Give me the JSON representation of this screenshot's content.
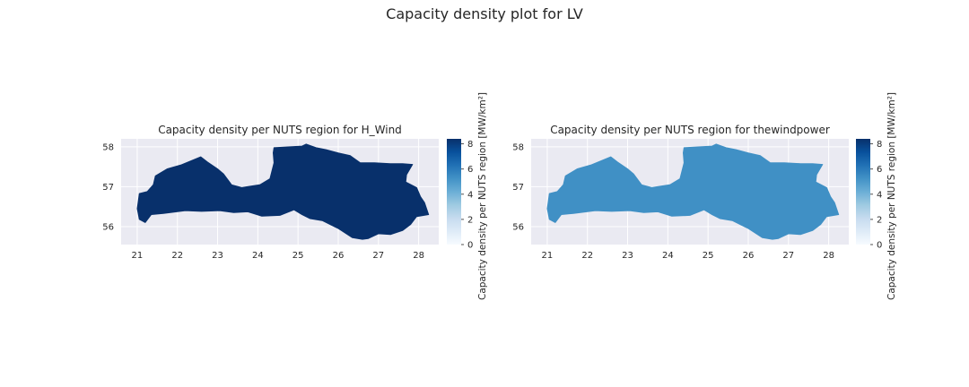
{
  "figure": {
    "title": "Capacity density plot for LV"
  },
  "colors": {
    "panel_bg": "#EAEAF2",
    "grid": "#FFFFFF",
    "text": "#262626"
  },
  "panels": [
    {
      "id": "hwind",
      "title": "Capacity density per NUTS region for H_Wind",
      "region": {
        "name": "LV",
        "value": 8.4
      },
      "colorbar": {
        "label": "Capacity density per NUTS region [MW/km²]",
        "ticks": [
          "0",
          "2",
          "4",
          "6",
          "8"
        ],
        "vmin": 0,
        "vmax": 8.4
      },
      "x_ticks": [
        "21",
        "22",
        "23",
        "24",
        "25",
        "26",
        "27",
        "28"
      ],
      "y_ticks": [
        "56",
        "57",
        "58"
      ]
    },
    {
      "id": "thewindpower",
      "title": "Capacity density per NUTS region for thewindpower",
      "region": {
        "name": "LV",
        "value": 5.3
      },
      "colorbar": {
        "label": "Capacity density per NUTS region [MW/km²]",
        "ticks": [
          "0",
          "2",
          "4",
          "6",
          "8"
        ],
        "vmin": 0,
        "vmax": 8.4
      },
      "x_ticks": [
        "21",
        "22",
        "23",
        "24",
        "25",
        "26",
        "27",
        "28"
      ],
      "y_ticks": [
        "56",
        "57",
        "58"
      ]
    }
  ],
  "chart_data": [
    {
      "type": "choropleth",
      "title": "Capacity density per NUTS region for H_Wind",
      "unit": "MW/km²",
      "regions": [
        {
          "name": "LV",
          "value": 8.4
        }
      ],
      "xlim": [
        20.6,
        28.5
      ],
      "ylim": [
        55.55,
        58.2
      ],
      "colorbar_range": [
        0,
        8.4
      ],
      "colorbar_label": "Capacity density per NUTS region [MW/km²]",
      "colormap": "Blues",
      "grid": true
    },
    {
      "type": "choropleth",
      "title": "Capacity density per NUTS region for thewindpower",
      "unit": "MW/km²",
      "regions": [
        {
          "name": "LV",
          "value": 5.3
        }
      ],
      "xlim": [
        20.6,
        28.5
      ],
      "ylim": [
        55.55,
        58.2
      ],
      "colorbar_range": [
        0,
        8.4
      ],
      "colorbar_label": "Capacity density per NUTS region [MW/km²]",
      "colormap": "Blues",
      "grid": true
    }
  ]
}
